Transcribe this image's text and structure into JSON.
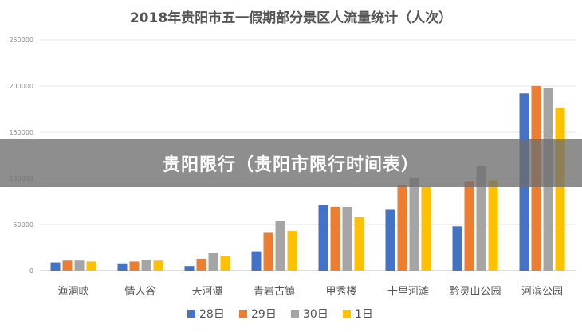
{
  "banner": {
    "text": "贵阳限行（贵阳市限行时间表）"
  },
  "colors": {
    "28日": "#4472c4",
    "29日": "#ed7d31",
    "30日": "#a5a5a5",
    "1日": "#ffc000"
  },
  "chart_data": {
    "type": "bar",
    "title": "2018年贵阳市五一假期部分景区人流量统计（人次）",
    "xlabel": "",
    "ylabel": "",
    "ylim": [
      0,
      250000
    ],
    "yticks": [
      0,
      50000,
      100000,
      150000,
      200000,
      250000
    ],
    "grid": true,
    "legend_position": "bottom",
    "categories": [
      "渔洞峡",
      "情人谷",
      "天河潭",
      "青岩古镇",
      "甲秀楼",
      "十里河滩",
      "黔灵山公园",
      "河滨公园"
    ],
    "series": [
      {
        "name": "28日",
        "color": "#4472c4",
        "values": [
          9000,
          8000,
          5000,
          21000,
          71000,
          66000,
          48000,
          192000
        ]
      },
      {
        "name": "29日",
        "color": "#ed7d31",
        "values": [
          11000,
          10000,
          13000,
          41000,
          69000,
          93000,
          97000,
          200000
        ]
      },
      {
        "name": "30日",
        "color": "#a5a5a5",
        "values": [
          11000,
          12000,
          19000,
          54000,
          69000,
          101000,
          113000,
          198000
        ]
      },
      {
        "name": "1日",
        "color": "#ffc000",
        "values": [
          10000,
          11000,
          16000,
          43000,
          58000,
          91000,
          98000,
          176000
        ]
      }
    ]
  }
}
